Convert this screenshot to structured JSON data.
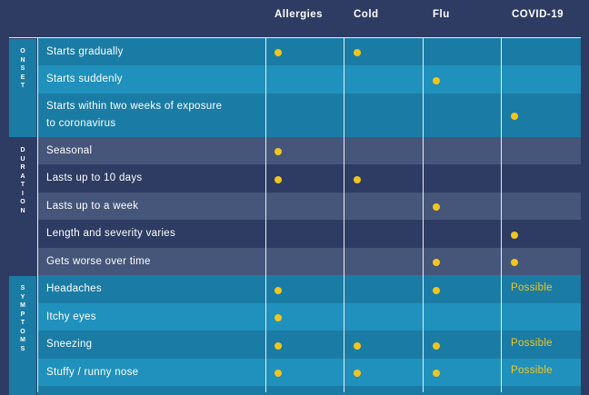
{
  "columns": [
    "Allergies",
    "Cold",
    "Flu",
    "COVID-19"
  ],
  "colors": {
    "page_bg": "#2e3c63",
    "onset_dark": "#1a7ca5",
    "onset_light": "#2091bc",
    "duration_dark": "#2e3c63",
    "duration_light": "#46557a",
    "dot": "#f1c51e",
    "rule": "#e8ecf3"
  },
  "sections": [
    {
      "label": "ONSET",
      "theme": "onset",
      "rows": [
        {
          "label": "Starts gradually",
          "values": [
            "dot",
            "dot",
            "",
            ""
          ]
        },
        {
          "label": "Starts suddenly",
          "values": [
            "",
            "",
            "dot",
            ""
          ]
        },
        {
          "label": "Starts within two weeks of exposure\nto coronavirus",
          "values": [
            "",
            "",
            "",
            "dot"
          ]
        }
      ]
    },
    {
      "label": "DURATION",
      "theme": "duration",
      "rows": [
        {
          "label": "Seasonal",
          "values": [
            "dot",
            "",
            "",
            ""
          ]
        },
        {
          "label": "Lasts up to 10 days",
          "values": [
            "dot",
            "dot",
            "",
            ""
          ]
        },
        {
          "label": "Lasts up to a week",
          "values": [
            "",
            "",
            "dot",
            ""
          ]
        },
        {
          "label": "Length and severity varies",
          "values": [
            "",
            "",
            "",
            "dot"
          ]
        },
        {
          "label": "Gets worse over time",
          "values": [
            "",
            "",
            "dot",
            "dot"
          ]
        }
      ]
    },
    {
      "label": "SYMPTOMS",
      "theme": "onset",
      "rows": [
        {
          "label": "Headaches",
          "values": [
            "dot",
            "",
            "dot",
            "Possible"
          ]
        },
        {
          "label": "Itchy eyes",
          "values": [
            "dot",
            "",
            "",
            ""
          ]
        },
        {
          "label": "Sneezing",
          "values": [
            "dot",
            "dot",
            "dot",
            "Possible"
          ]
        },
        {
          "label": "Stuffy / runny nose",
          "values": [
            "dot",
            "dot",
            "dot",
            "Possible"
          ]
        },
        {
          "label": "",
          "values": [
            "",
            "",
            "",
            ""
          ]
        }
      ]
    }
  ]
}
